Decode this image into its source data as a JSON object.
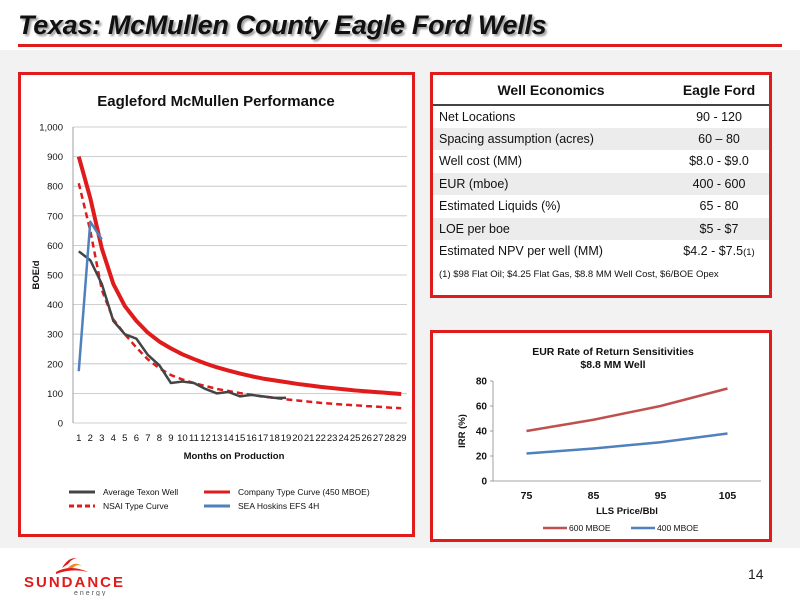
{
  "slide": {
    "title": "Texas: McMullen County Eagle Ford Wells",
    "page_number": "14",
    "logo_text": "SUNDANCE",
    "logo_sub": "energy"
  },
  "colors": {
    "accent": "#e01b1b",
    "dark_line": "#444444",
    "blue_line": "#4f81bd",
    "red_line": "#c0504d"
  },
  "chart_data": [
    {
      "type": "line",
      "title": "Eagleford McMullen Performance",
      "xlabel": "Months on Production",
      "ylabel": "BOE/d",
      "ylim": [
        0,
        1000
      ],
      "yticks": [
        "0",
        "100",
        "200",
        "300",
        "400",
        "500",
        "600",
        "700",
        "800",
        "900",
        "1,000"
      ],
      "x": [
        1,
        2,
        3,
        4,
        5,
        6,
        7,
        8,
        9,
        10,
        11,
        12,
        13,
        14,
        15,
        16,
        17,
        18,
        19,
        20,
        21,
        22,
        23,
        24,
        25,
        26,
        27,
        28,
        29
      ],
      "grid": true,
      "legend": "bottom",
      "series": [
        {
          "name": "Average Texon Well",
          "color": "#444444",
          "dash": false,
          "x": [
            1,
            2,
            3,
            4,
            5,
            6,
            7,
            8,
            9,
            10,
            11,
            12,
            13,
            14,
            15,
            16,
            17,
            18,
            19
          ],
          "values": [
            580,
            550,
            470,
            345,
            300,
            285,
            230,
            195,
            135,
            140,
            135,
            115,
            100,
            105,
            90,
            95,
            90,
            85,
            85
          ]
        },
        {
          "name": "Company Type Curve  (450 MBOE)",
          "color": "#e01b1b",
          "dash": false,
          "x": [
            1,
            2,
            3,
            4,
            5,
            6,
            7,
            8,
            9,
            10,
            11,
            12,
            13,
            14,
            15,
            16,
            17,
            18,
            19,
            20,
            21,
            22,
            23,
            24,
            25,
            26,
            27,
            28,
            29
          ],
          "values": [
            900,
            760,
            590,
            470,
            395,
            345,
            305,
            275,
            252,
            232,
            216,
            201,
            188,
            177,
            167,
            158,
            150,
            144,
            138,
            132,
            127,
            122,
            118,
            114,
            110,
            107,
            104,
            101,
            98
          ]
        },
        {
          "name": "NSAI Type Curve",
          "color": "#e01b1b",
          "dash": true,
          "x": [
            1,
            2,
            3,
            4,
            5,
            6,
            7,
            8,
            9,
            10,
            11,
            12,
            13,
            14,
            15,
            16,
            17,
            18,
            19,
            20,
            21,
            22,
            23,
            24,
            25,
            26,
            27,
            28,
            29
          ],
          "values": [
            810,
            650,
            450,
            350,
            300,
            255,
            215,
            185,
            162,
            147,
            135,
            125,
            115,
            108,
            101,
            95,
            89,
            85,
            80,
            76,
            72,
            68,
            65,
            62,
            60,
            57,
            55,
            52,
            50
          ]
        },
        {
          "name": "SEA Hoskins EFS 4H",
          "color": "#4f81bd",
          "dash": false,
          "x": [
            1,
            2,
            3
          ],
          "values": [
            175,
            680,
            620
          ]
        }
      ]
    },
    {
      "type": "line",
      "title": "EUR Rate of Return Sensitivities",
      "subtitle": "$8.8 MM Well",
      "xlabel": "LLS Price/Bbl",
      "ylabel": "IRR (%)",
      "categories": [
        "75",
        "85",
        "95",
        "105"
      ],
      "ylim": [
        0,
        80
      ],
      "yticks": [
        "0",
        "20",
        "40",
        "60",
        "80"
      ],
      "grid": false,
      "legend": "bottom",
      "series": [
        {
          "name": "600 MBOE",
          "color": "#c0504d",
          "values": [
            40,
            49,
            60,
            74
          ]
        },
        {
          "name": "400 MBOE",
          "color": "#4f81bd",
          "values": [
            22,
            26,
            31,
            38
          ]
        }
      ]
    },
    {
      "type": "table",
      "headers": [
        "Well Economics",
        "Eagle Ford"
      ],
      "rows": [
        [
          "Net Locations",
          "90 - 120"
        ],
        [
          "Spacing assumption (acres)",
          "60 – 80"
        ],
        [
          "Well cost (MM)",
          "$8.0 - $9.0"
        ],
        [
          "EUR (mboe)",
          "400 - 600"
        ],
        [
          "Estimated Liquids (%)",
          "65 - 80"
        ],
        [
          "LOE per boe",
          "$5 - $7"
        ],
        [
          "Estimated NPV per well (MM)",
          "$4.2 -  $7.5"
        ]
      ],
      "npv_footnote_mark": "(1)",
      "footnote": "(1) $98 Flat Oil; $4.25 Flat Gas, $8.8 MM Well Cost, $6/BOE Opex"
    }
  ]
}
